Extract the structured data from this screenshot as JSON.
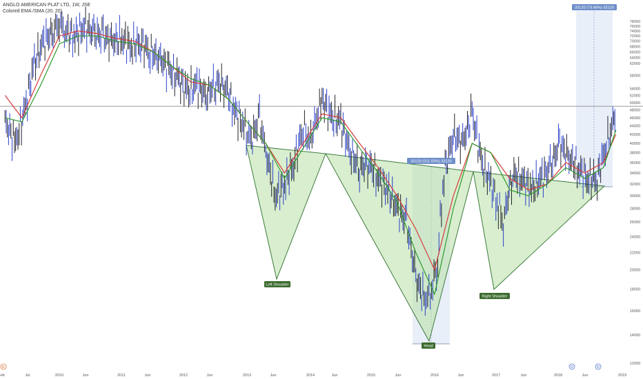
{
  "header": {
    "symbol_line": "ANGLO AMERICAN PLAT LTD, 1W, JSE",
    "indicator_line": "Colored EMA /SMA (20, 20)"
  },
  "chart_data": {
    "type": "line",
    "title": "",
    "series": [
      {
        "kind": "price-bars",
        "x": [
          2009.13,
          2009.3,
          2009.45,
          2009.6,
          2009.75,
          2009.9,
          2010.0,
          2010.1,
          2010.25,
          2010.4,
          2010.55,
          2010.7,
          2010.85,
          2011.0,
          2011.15,
          2011.3,
          2011.45,
          2011.6,
          2011.75,
          2011.9,
          2012.05,
          2012.2,
          2012.35,
          2012.5,
          2012.65,
          2012.8,
          2012.95,
          2013.05,
          2013.2,
          2013.3,
          2013.45,
          2013.6,
          2013.75,
          2013.9,
          2014.0,
          2014.08,
          2014.2,
          2014.35,
          2014.5,
          2014.65,
          2014.8,
          2014.95,
          2015.1,
          2015.25,
          2015.4,
          2015.55,
          2015.7,
          2015.85,
          2015.95,
          2016.05,
          2016.15,
          2016.3,
          2016.45,
          2016.6,
          2016.75,
          2016.9,
          2017.0,
          2017.1,
          2017.25,
          2017.4,
          2017.55,
          2017.7,
          2017.85,
          2018.0,
          2018.15,
          2018.3,
          2018.45,
          2018.6,
          2018.75,
          2018.85,
          2018.9
        ],
        "values": [
          45000,
          40000,
          48000,
          62000,
          70000,
          74000,
          78000,
          74000,
          72000,
          76000,
          73000,
          72000,
          70000,
          71000,
          68000,
          70000,
          66000,
          64000,
          60000,
          57000,
          53000,
          55000,
          52000,
          56000,
          55000,
          48000,
          44000,
          40000,
          46000,
          38000,
          30000,
          32000,
          36000,
          44000,
          40000,
          44000,
          51000,
          46000,
          45000,
          38000,
          35000,
          36000,
          33000,
          31000,
          28000,
          26000,
          19000,
          17000,
          18000,
          21000,
          34000,
          42000,
          40000,
          47000,
          36000,
          32000,
          29000,
          26000,
          34000,
          33000,
          31000,
          33000,
          35000,
          40000,
          37000,
          35000,
          33000,
          33000,
          40000,
          44000,
          48000
        ]
      },
      {
        "kind": "moving-average",
        "x": [
          2009.13,
          2009.4,
          2009.7,
          2010.0,
          2010.3,
          2010.6,
          2010.9,
          2011.2,
          2011.5,
          2011.8,
          2012.1,
          2012.4,
          2012.7,
          2013.0,
          2013.3,
          2013.6,
          2013.9,
          2014.2,
          2014.5,
          2014.8,
          2015.1,
          2015.4,
          2015.7,
          2016.0,
          2016.3,
          2016.6,
          2016.9,
          2017.2,
          2017.5,
          2017.8,
          2018.1,
          2018.4,
          2018.7,
          2018.9
        ],
        "values": [
          52000,
          46000,
          58000,
          72000,
          74000,
          73000,
          71000,
          70000,
          66000,
          61000,
          56000,
          55000,
          51000,
          45000,
          40000,
          34000,
          40000,
          47000,
          46000,
          40000,
          35000,
          30000,
          25000,
          20000,
          30000,
          40000,
          38000,
          33000,
          31000,
          32000,
          36000,
          34000,
          36000,
          42000
        ]
      },
      {
        "kind": "moving-average",
        "x": [
          2009.13,
          2009.4,
          2009.7,
          2010.0,
          2010.3,
          2010.6,
          2010.9,
          2011.2,
          2011.5,
          2011.8,
          2012.1,
          2012.4,
          2012.7,
          2013.0,
          2013.3,
          2013.6,
          2013.9,
          2014.2,
          2014.5,
          2014.8,
          2015.1,
          2015.4,
          2015.7,
          2016.0,
          2016.3,
          2016.6,
          2016.9,
          2017.2,
          2017.5,
          2017.8,
          2018.1,
          2018.4,
          2018.7,
          2018.9
        ],
        "values": [
          46000,
          45000,
          55000,
          69000,
          72000,
          72000,
          70000,
          69000,
          66000,
          61000,
          57000,
          55000,
          51000,
          45000,
          40000,
          33000,
          39000,
          46000,
          45000,
          39000,
          34000,
          29000,
          22000,
          17500,
          28000,
          40000,
          38000,
          31000,
          30000,
          32000,
          35000,
          33000,
          35000,
          43000
        ]
      }
    ],
    "y_ticks": [
      12000,
      14000,
      16000,
      18000,
      20000,
      22000,
      24000,
      26000,
      28000,
      30000,
      32000,
      34000,
      36000,
      38000,
      40000,
      42000,
      44000,
      46000,
      48000,
      50000,
      52000,
      54000,
      58000,
      62000,
      64000,
      66000,
      68000,
      70000,
      72000,
      74000,
      76000,
      78000
    ],
    "y_axis_scale": "log",
    "x_tick_labels": [
      "Feb",
      "Jul",
      "2010",
      "Jun",
      "2011",
      "Jun",
      "2012",
      "Jun",
      "2013",
      "Jun",
      "2014",
      "Jun",
      "2015",
      "Jun",
      "2016",
      "Jun",
      "2017",
      "Jun",
      "2018",
      "Jun",
      "2019"
    ],
    "horizontal_line_price": 49000,
    "measure_labels": [
      "33120 (73.66%) 33120",
      "33120 (211.55%) 33120"
    ],
    "pattern_labels": [
      "Left Shoulder",
      "Head",
      "Right Shoulder"
    ],
    "event_markers": [
      "D",
      "D"
    ],
    "corner_marker": "E",
    "colors": {
      "bar_up": "#2a3fc8",
      "bar_down": "#20202a",
      "ema": "#d63a3a",
      "sma": "#2e9a2e",
      "pattern_fill": "#b8e0a6",
      "pattern_stroke": "#3d7a3d",
      "label_bg": "#3b6b2e",
      "measure_bg": "#6f8fc9",
      "range_bg": "#dfe8f7"
    }
  }
}
